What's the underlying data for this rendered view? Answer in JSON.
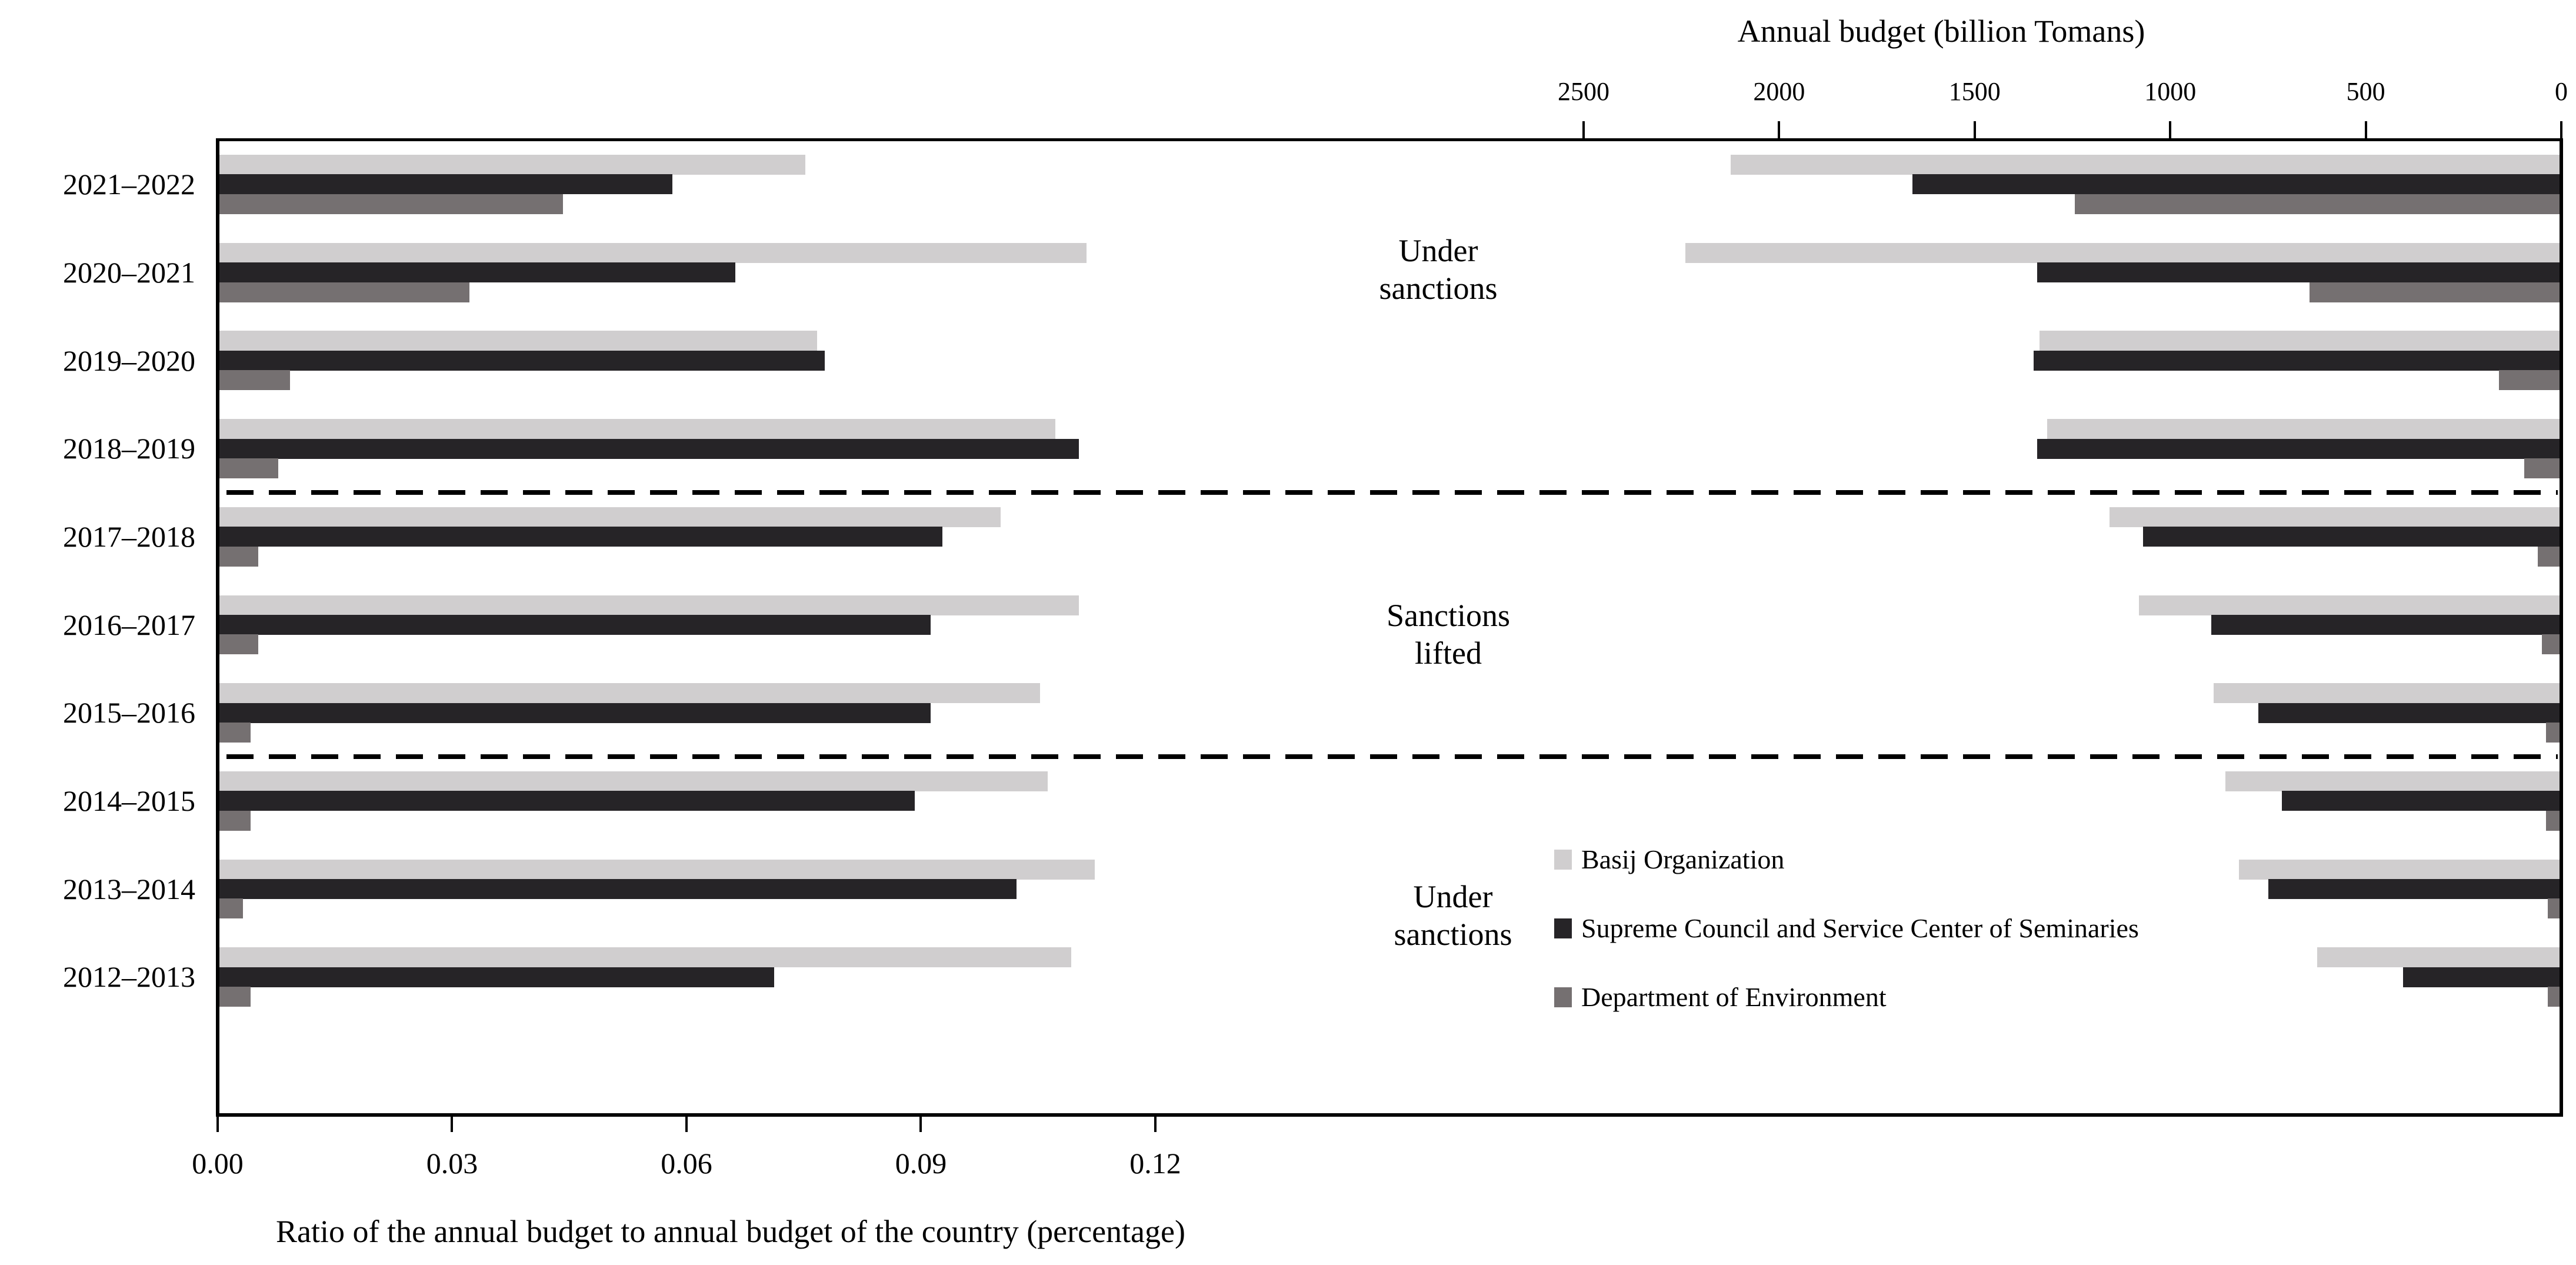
{
  "colors": {
    "background": "#ffffff",
    "axis": "#000000",
    "text": "#000000"
  },
  "legend": {
    "position": "center-right",
    "items": [
      {
        "label": "Basij Organization",
        "color": "#d0cecf"
      },
      {
        "label": "Supreme Council and Service Center of Seminaries",
        "color": "#262427"
      },
      {
        "label": "Department of Environment",
        "color": "#757071"
      }
    ]
  },
  "annotations": {
    "periods": [
      {
        "lines": [
          "Under",
          "sanctions"
        ],
        "categories": [
          "2021–2022",
          "2020–2021",
          "2019–2020",
          "2018–2019"
        ]
      },
      {
        "lines": [
          "Sanctions",
          "lifted"
        ],
        "categories": [
          "2017–2018",
          "2016–2017",
          "2015–2016"
        ]
      },
      {
        "lines": [
          "Under",
          "sanctions"
        ],
        "categories": [
          "2014–2015",
          "2013–2014",
          "2012–2013"
        ]
      }
    ],
    "separators": [
      {
        "between": [
          "2018–2019",
          "2017–2018"
        ]
      },
      {
        "between": [
          "2015–2016",
          "2014–2015"
        ]
      }
    ]
  },
  "chart_data": [
    {
      "type": "bar",
      "orientation": "horizontal",
      "panel": "left",
      "xlabel": "Ratio of the annual budget to annual budget of the country (percentage)",
      "value_axis_side": "bottom",
      "grid": false,
      "xlim": [
        0,
        0.15
      ],
      "xticks": [
        0,
        0.03,
        0.06,
        0.09,
        0.12
      ],
      "xtick_labels": [
        "0.00",
        "0.03",
        "0.06",
        "0.09",
        "0.12"
      ],
      "categories": [
        "2021–2022",
        "2020–2021",
        "2019–2020",
        "2018–2019",
        "2017–2018",
        "2016–2017",
        "2015–2016",
        "2014–2015",
        "2013–2014",
        "2012–2013"
      ],
      "series": [
        {
          "name": "Basij Organization",
          "color": "#d0cecf",
          "values": [
            0.075,
            0.111,
            0.0765,
            0.107,
            0.1,
            0.11,
            0.105,
            0.106,
            0.112,
            0.109
          ]
        },
        {
          "name": "Supreme Council and Service Center of Seminaries",
          "color": "#262427",
          "values": [
            0.058,
            0.066,
            0.0775,
            0.11,
            0.0925,
            0.091,
            0.091,
            0.089,
            0.102,
            0.071
          ]
        },
        {
          "name": "Department of Environment",
          "color": "#757071",
          "values": [
            0.044,
            0.032,
            0.009,
            0.0075,
            0.005,
            0.005,
            0.004,
            0.004,
            0.003,
            0.004
          ]
        }
      ]
    },
    {
      "type": "bar",
      "orientation": "horizontal",
      "panel": "right",
      "xlabel": "Annual budget (billion Tomans)",
      "value_axis_side": "top",
      "axis_reversed": true,
      "grid": false,
      "xlim": [
        2500,
        0
      ],
      "xticks": [
        2500,
        2000,
        1500,
        1000,
        500,
        0
      ],
      "xtick_labels": [
        "2500",
        "2000",
        "1500",
        "1000",
        "500",
        "0"
      ],
      "categories": [
        "2021–2022",
        "2020–2021",
        "2019–2020",
        "2018–2019",
        "2017–2018",
        "2016–2017",
        "2015–2016",
        "2014–2015",
        "2013–2014",
        "2012–2013"
      ],
      "series": [
        {
          "name": "Basij Organization",
          "color": "#d0cecf",
          "values": [
            2120,
            2235,
            1330,
            1310,
            1150,
            1075,
            885,
            855,
            820,
            620
          ]
        },
        {
          "name": "Supreme Council and Service Center of Seminaries",
          "color": "#262427",
          "values": [
            1655,
            1335,
            1345,
            1335,
            1065,
            890,
            770,
            710,
            745,
            400
          ]
        },
        {
          "name": "Department of Environment",
          "color": "#757071",
          "values": [
            1240,
            640,
            155,
            90,
            55,
            45,
            35,
            35,
            30,
            30
          ]
        }
      ]
    }
  ]
}
